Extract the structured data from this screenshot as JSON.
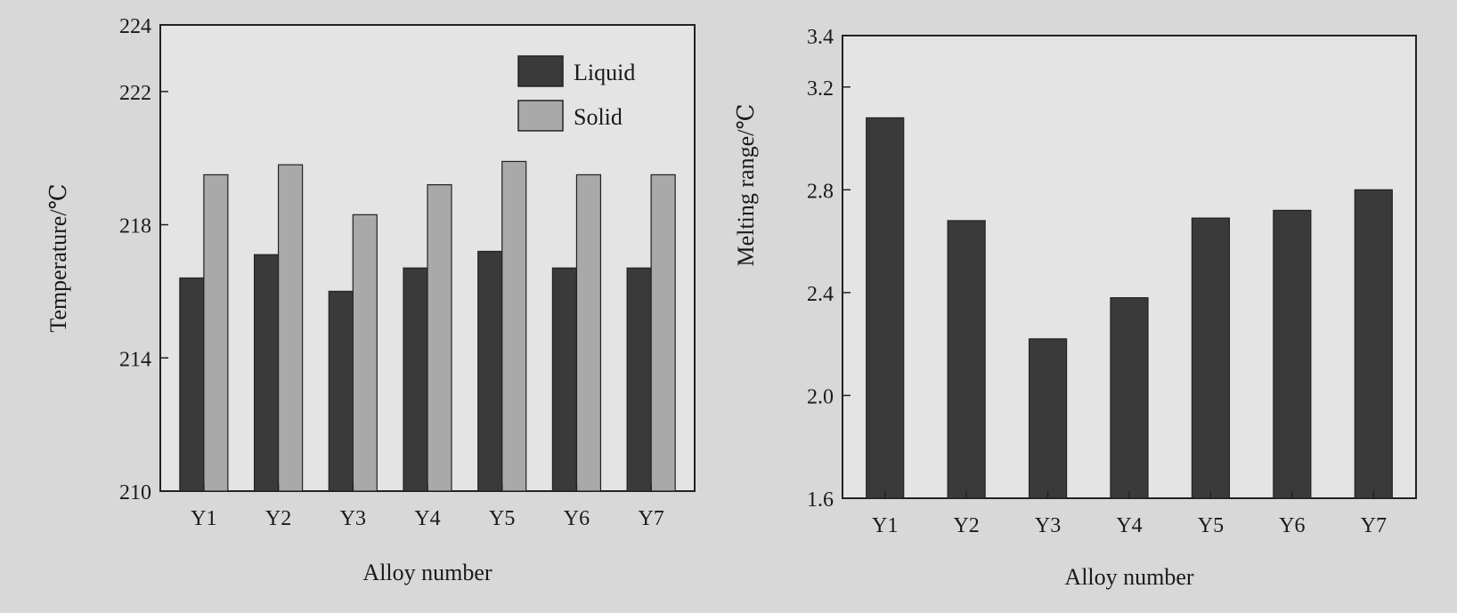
{
  "colors": {
    "background": "#d8d8d8",
    "plot_background": "#e4e4e4",
    "liquid_bar": "#3a3a3a",
    "solid_bar": "#a9a9a9",
    "melting_bar": "#3a3a3a",
    "axis": "#222222"
  },
  "chart_data": [
    {
      "type": "bar",
      "categories": [
        "Y1",
        "Y2",
        "Y3",
        "Y4",
        "Y5",
        "Y6",
        "Y7"
      ],
      "series": [
        {
          "name": "Liquid",
          "values": [
            216.4,
            217.1,
            216.0,
            216.7,
            217.2,
            216.7,
            216.7
          ]
        },
        {
          "name": "Solid",
          "values": [
            219.5,
            219.8,
            218.3,
            219.2,
            219.9,
            219.5,
            219.5
          ]
        }
      ],
      "xlabel": "Alloy number",
      "ylabel": "Temperature/℃",
      "ylim": [
        210,
        224
      ],
      "yticks": [
        "210",
        "214",
        "218",
        "222",
        "224"
      ],
      "ytick_values": [
        210,
        214,
        218,
        222,
        224
      ],
      "grid": false,
      "legend": "top-right"
    },
    {
      "type": "bar",
      "categories": [
        "Y1",
        "Y2",
        "Y3",
        "Y4",
        "Y5",
        "Y6",
        "Y7"
      ],
      "series": [
        {
          "name": "",
          "values": [
            3.08,
            2.68,
            2.22,
            2.38,
            2.69,
            2.72,
            2.8
          ]
        }
      ],
      "xlabel": "Alloy number",
      "ylabel": "Melting range/℃",
      "ylim": [
        1.6,
        3.4
      ],
      "yticks": [
        "1.6",
        "2.0",
        "2.4",
        "2.8",
        "3.2",
        "3.4"
      ],
      "ytick_values": [
        1.6,
        2.0,
        2.4,
        2.8,
        3.2,
        3.4
      ],
      "grid": false,
      "legend": "none"
    }
  ]
}
